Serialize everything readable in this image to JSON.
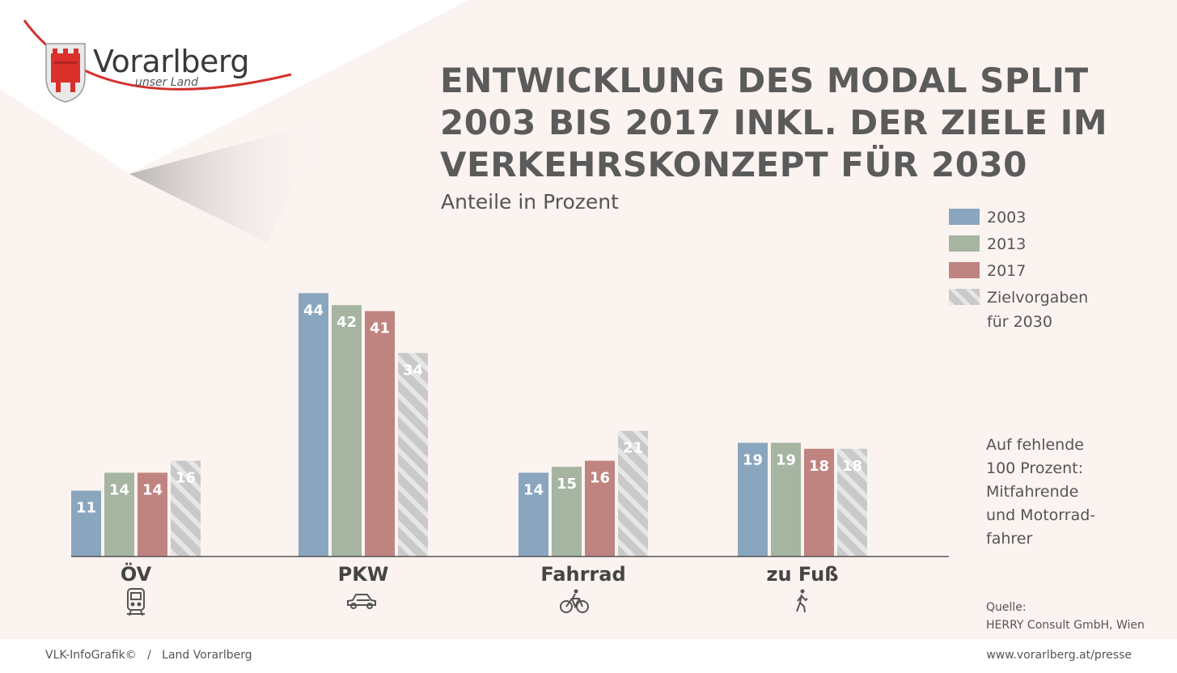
{
  "logo": {
    "name": "Vorarlberg",
    "tagline": "unser Land"
  },
  "title": "ENTWICKLUNG DES MODAL SPLIT\n2003 BIS 2017 INKL. DER ZIELE IM\nVERKEHRSKONZEPT FÜR 2030",
  "subtitle": "Anteile in Prozent",
  "legend": [
    {
      "label": "2003",
      "color": "#8aa6bf",
      "pattern": "solid"
    },
    {
      "label": "2013",
      "color": "#a5b5a1",
      "pattern": "solid"
    },
    {
      "label": "2017",
      "color": "#c08480",
      "pattern": "solid"
    },
    {
      "label": "Zielvorgaben\nfür 2030",
      "color": "#c9c9c9",
      "pattern": "hatched"
    }
  ],
  "note": "Auf fehlende\n100 Prozent:\nMitfahrende\nund Motorrad-\nfahrer",
  "source": "Quelle:\nHERRY Consult GmbH, Wien",
  "footer": {
    "left": "VLK-InfoGrafik©   /   Land Vorarlberg",
    "right": "www.vorarlberg.at/presse"
  },
  "chart_data": {
    "type": "bar",
    "title": "ENTWICKLUNG DES MODAL SPLIT 2003 BIS 2017 INKL. DER ZIELE IM VERKEHRSKONZEPT FÜR 2030",
    "subtitle": "Anteile in Prozent",
    "categories": [
      "ÖV",
      "PKW",
      "Fahrrad",
      "zu Fuß"
    ],
    "category_icons": [
      "train-icon",
      "car-icon",
      "bicycle-icon",
      "pedestrian-icon"
    ],
    "series": [
      {
        "name": "2003",
        "values": [
          11,
          44,
          14,
          19
        ]
      },
      {
        "name": "2013",
        "values": [
          14,
          42,
          15,
          19
        ]
      },
      {
        "name": "2017",
        "values": [
          14,
          41,
          16,
          18
        ]
      },
      {
        "name": "Zielvorgaben für 2030",
        "values": [
          16,
          34,
          21,
          18
        ]
      }
    ],
    "xlabel": "",
    "ylabel": "",
    "ylim": [
      0,
      44
    ],
    "grid": false,
    "legend_position": "right"
  }
}
